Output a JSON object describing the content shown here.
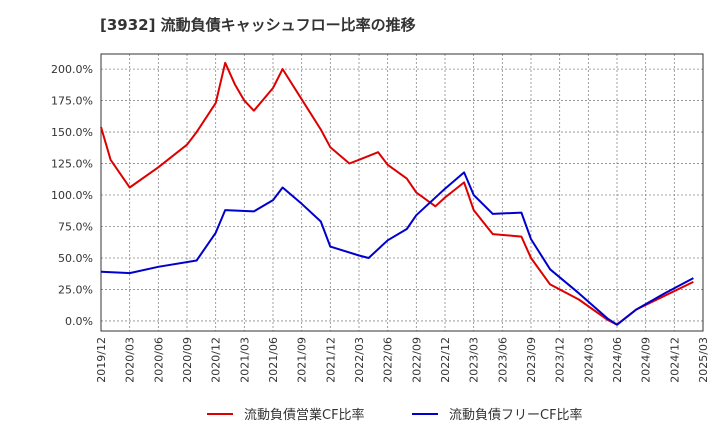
{
  "chart_data": {
    "type": "line",
    "title": "[3932]  流動負債キャッシュフロー比率の推移",
    "xlabel": "",
    "ylabel": "",
    "x_ticks": [
      "2019/12",
      "2020/03",
      "2020/06",
      "2020/09",
      "2020/12",
      "2021/03",
      "2021/06",
      "2021/09",
      "2021/12",
      "2022/03",
      "2022/06",
      "2022/09",
      "2022/12",
      "2023/03",
      "2023/06",
      "2023/09",
      "2023/12",
      "2024/03",
      "2024/06",
      "2024/09",
      "2024/12",
      "2025/03"
    ],
    "y_ticks": [
      "0.0%",
      "25.0%",
      "50.0%",
      "75.0%",
      "100.0%",
      "125.0%",
      "150.0%",
      "175.0%",
      "200.0%"
    ],
    "y_tick_values": [
      0,
      25,
      50,
      75,
      100,
      125,
      150,
      175,
      200
    ],
    "ylim": [
      -8,
      212
    ],
    "grid": true,
    "legend_position": "bottom",
    "series": [
      {
        "name": "流動負債営業CF比率",
        "color": "#dd0000",
        "points": [
          {
            "x": "2019/12",
            "y": 154
          },
          {
            "x": "2020/01",
            "y": 128
          },
          {
            "x": "2020/03",
            "y": 106
          },
          {
            "x": "2020/06",
            "y": 122
          },
          {
            "x": "2020/09",
            "y": 140
          },
          {
            "x": "2020/10",
            "y": 150
          },
          {
            "x": "2020/12",
            "y": 173
          },
          {
            "x": "2021/01",
            "y": 205
          },
          {
            "x": "2021/02",
            "y": 188
          },
          {
            "x": "2021/03",
            "y": 175
          },
          {
            "x": "2021/04",
            "y": 167
          },
          {
            "x": "2021/06",
            "y": 185
          },
          {
            "x": "2021/07",
            "y": 200
          },
          {
            "x": "2021/09",
            "y": 176
          },
          {
            "x": "2021/11",
            "y": 152
          },
          {
            "x": "2021/12",
            "y": 138
          },
          {
            "x": "2022/02",
            "y": 125
          },
          {
            "x": "2022/03",
            "y": 128
          },
          {
            "x": "2022/05",
            "y": 134
          },
          {
            "x": "2022/06",
            "y": 124
          },
          {
            "x": "2022/08",
            "y": 113
          },
          {
            "x": "2022/09",
            "y": 102
          },
          {
            "x": "2022/11",
            "y": 91
          },
          {
            "x": "2022/12",
            "y": 98
          },
          {
            "x": "2023/02",
            "y": 110
          },
          {
            "x": "2023/03",
            "y": 88
          },
          {
            "x": "2023/05",
            "y": 69
          },
          {
            "x": "2023/08",
            "y": 67
          },
          {
            "x": "2023/09",
            "y": 50
          },
          {
            "x": "2023/11",
            "y": 29
          },
          {
            "x": "2024/02",
            "y": 17
          },
          {
            "x": "2024/05",
            "y": 1
          },
          {
            "x": "2024/06",
            "y": -3
          },
          {
            "x": "2024/08",
            "y": 9
          },
          {
            "x": "2024/11",
            "y": 20
          },
          {
            "x": "2025/02",
            "y": 31
          }
        ]
      },
      {
        "name": "流動負債フリーCF比率",
        "color": "#0000cc",
        "points": [
          {
            "x": "2019/12",
            "y": 39
          },
          {
            "x": "2020/03",
            "y": 38
          },
          {
            "x": "2020/06",
            "y": 43
          },
          {
            "x": "2020/10",
            "y": 48
          },
          {
            "x": "2020/12",
            "y": 70
          },
          {
            "x": "2021/01",
            "y": 88
          },
          {
            "x": "2021/04",
            "y": 87
          },
          {
            "x": "2021/06",
            "y": 96
          },
          {
            "x": "2021/07",
            "y": 106
          },
          {
            "x": "2021/09",
            "y": 93
          },
          {
            "x": "2021/11",
            "y": 79
          },
          {
            "x": "2021/12",
            "y": 59
          },
          {
            "x": "2022/03",
            "y": 52
          },
          {
            "x": "2022/04",
            "y": 50
          },
          {
            "x": "2022/06",
            "y": 64
          },
          {
            "x": "2022/08",
            "y": 73
          },
          {
            "x": "2022/09",
            "y": 84
          },
          {
            "x": "2022/12",
            "y": 105
          },
          {
            "x": "2023/02",
            "y": 118
          },
          {
            "x": "2023/03",
            "y": 100
          },
          {
            "x": "2023/05",
            "y": 85
          },
          {
            "x": "2023/08",
            "y": 86
          },
          {
            "x": "2023/09",
            "y": 65
          },
          {
            "x": "2023/11",
            "y": 41
          },
          {
            "x": "2024/02",
            "y": 22
          },
          {
            "x": "2024/05",
            "y": 2
          },
          {
            "x": "2024/06",
            "y": -3
          },
          {
            "x": "2024/08",
            "y": 9
          },
          {
            "x": "2024/11",
            "y": 22
          },
          {
            "x": "2025/02",
            "y": 34
          }
        ]
      }
    ]
  }
}
